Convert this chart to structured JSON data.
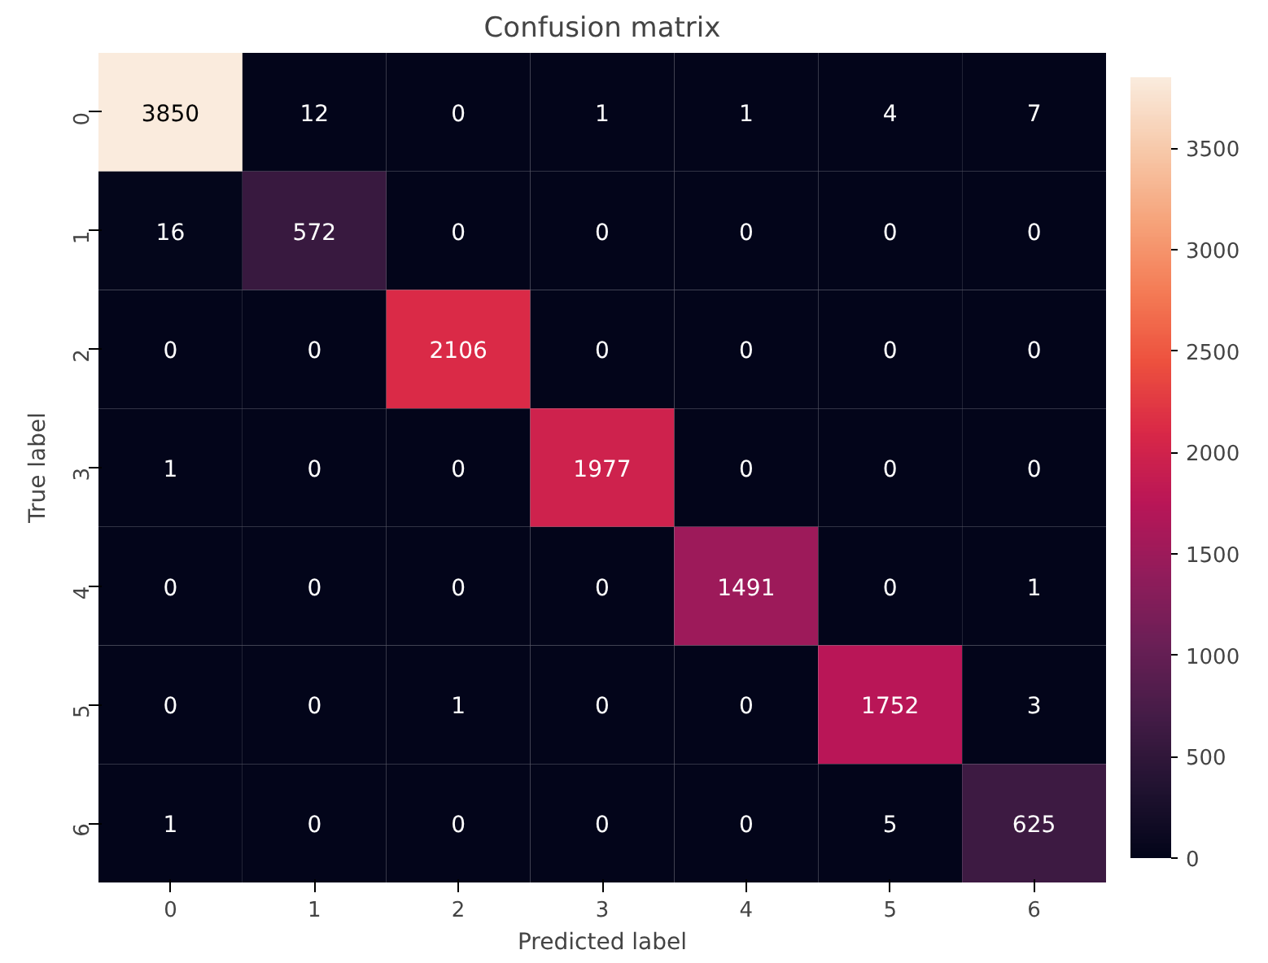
{
  "chart_data": {
    "type": "heatmap",
    "title": "Confusion matrix",
    "xlabel": "Predicted label",
    "ylabel": "True label",
    "categories": [
      "0",
      "1",
      "2",
      "3",
      "4",
      "5",
      "6"
    ],
    "y_categories": [
      "0",
      "1",
      "2",
      "3",
      "4",
      "5",
      "6"
    ],
    "cells": [
      [
        3850,
        12,
        0,
        1,
        1,
        4,
        7
      ],
      [
        16,
        572,
        0,
        0,
        0,
        0,
        0
      ],
      [
        0,
        0,
        2106,
        0,
        0,
        0,
        0
      ],
      [
        1,
        0,
        0,
        1977,
        0,
        0,
        0
      ],
      [
        0,
        0,
        0,
        0,
        1491,
        0,
        1
      ],
      [
        0,
        0,
        1,
        0,
        0,
        1752,
        3
      ],
      [
        1,
        0,
        0,
        0,
        0,
        5,
        625
      ]
    ],
    "data_labels": true,
    "colors": [
      "#03051a",
      "#221331",
      "#451c47",
      "#6a1f56",
      "#921c5b",
      "#b91657",
      "#d92847",
      "#ed513e",
      "#f47c56",
      "#f6a47b",
      "#f7c9aa",
      "#faebdd"
    ],
    "clim": [
      0,
      3850
    ],
    "cticks": [
      0,
      500,
      1000,
      1500,
      2000,
      2500,
      3000,
      3500
    ]
  }
}
